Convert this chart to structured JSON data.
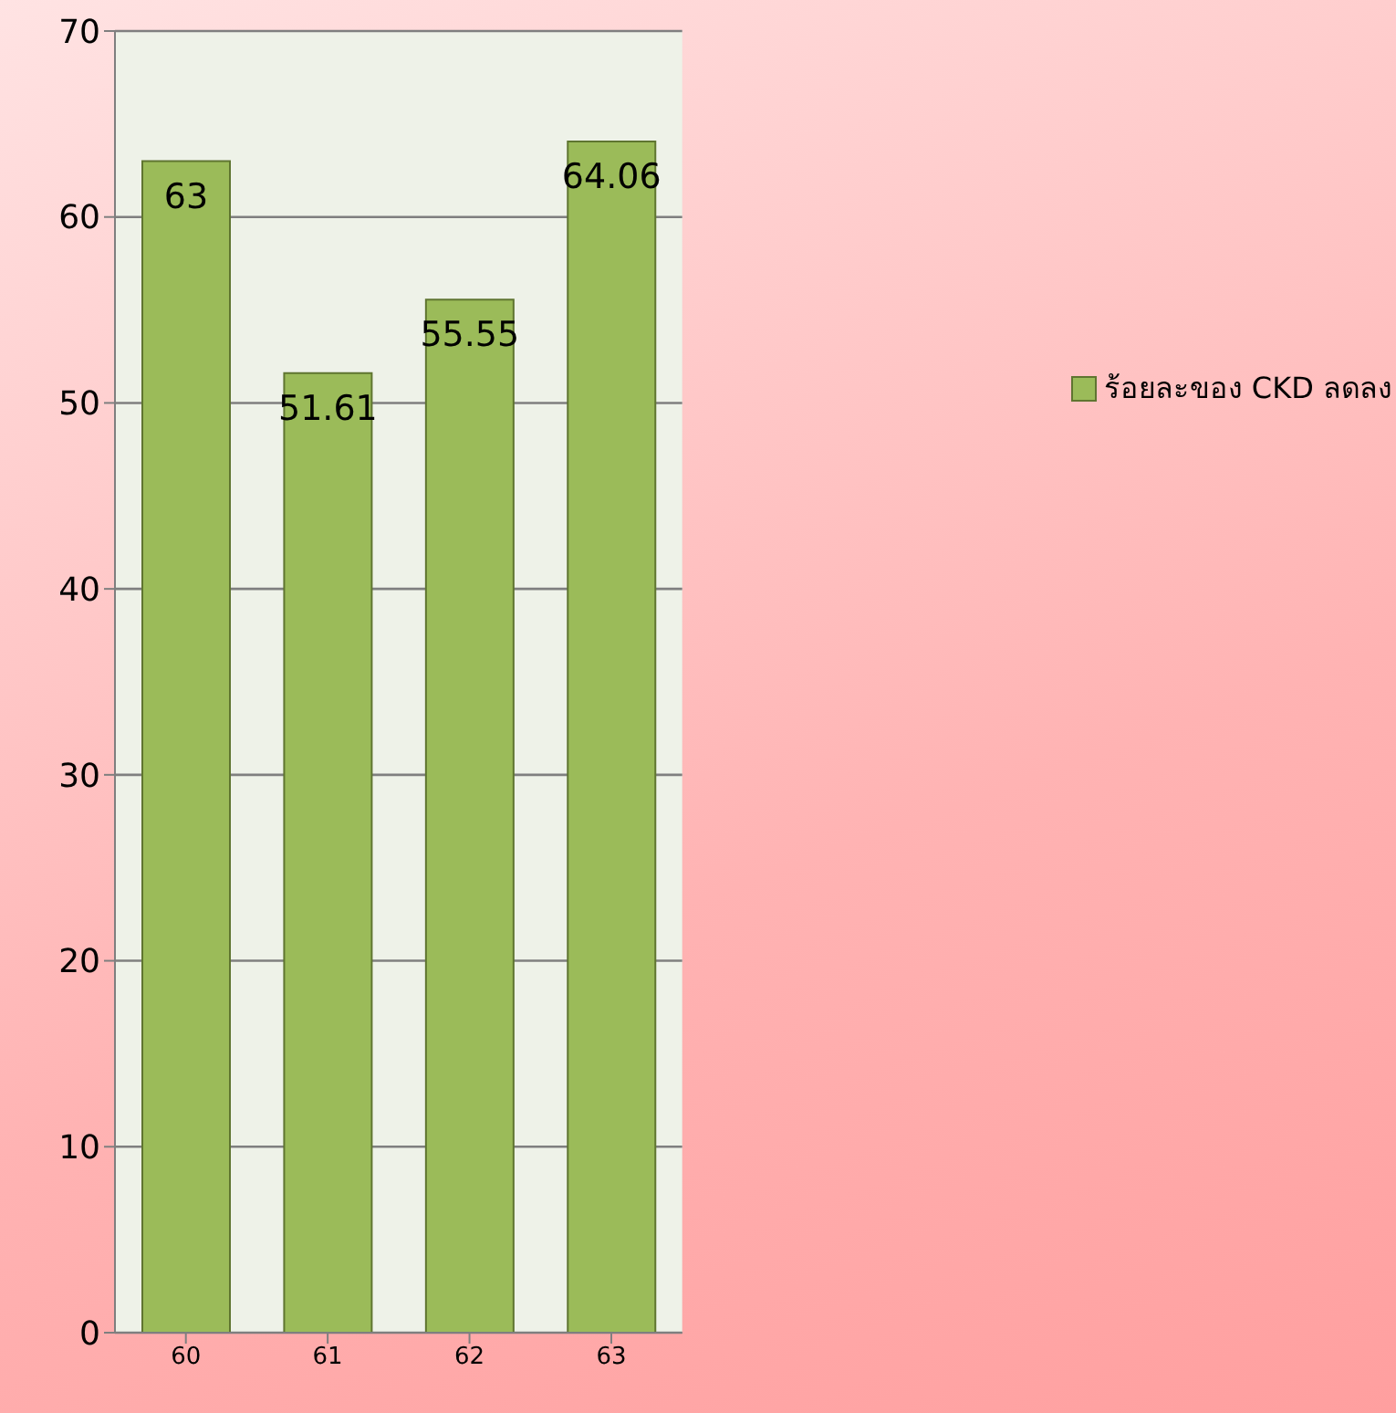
{
  "chart_data": {
    "type": "bar",
    "categories": [
      "60",
      "61",
      "62",
      "63"
    ],
    "series": [
      {
        "name": "ร้อยละของ CKD ลดลง",
        "color": "#9bbb59",
        "values": [
          63,
          51.61,
          55.55,
          64.06
        ]
      }
    ],
    "ylim": [
      0,
      70
    ],
    "yticks": [
      0,
      10,
      20,
      30,
      40,
      50,
      60,
      70
    ],
    "grid": "y",
    "legend": "right",
    "data_labels": true
  }
}
